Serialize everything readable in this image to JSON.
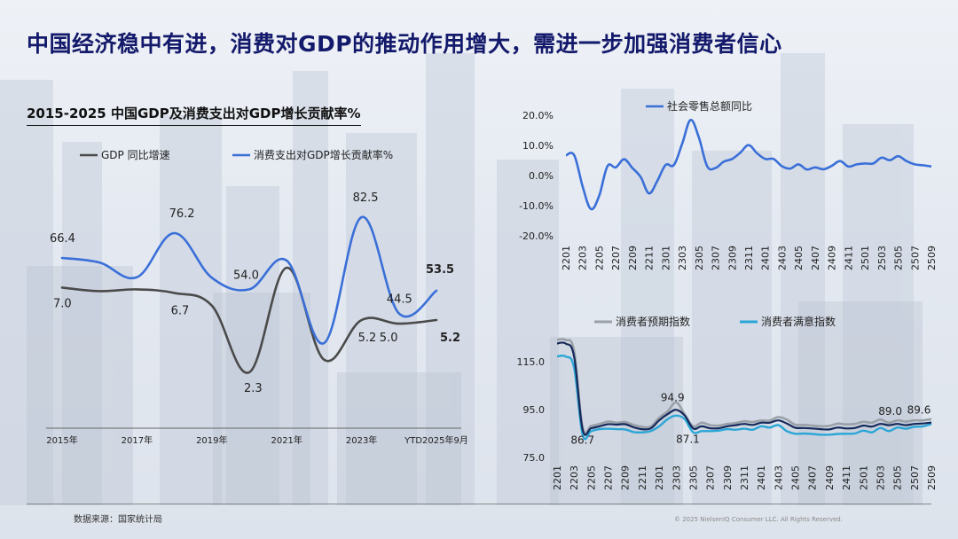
{
  "page": {
    "title": "中国经济稳中有进，消费对GDP的推动作用增大，需进一步加强消费者信心",
    "source": "数据来源：国家统计局",
    "copyright": "© 2025 NielsenIQ Consumer LLC. All Rights Reserved."
  },
  "colors": {
    "gdp": "#4a4a4a",
    "consumption": "#3a6fd8",
    "retail": "#3a6fd8",
    "expectation": "#9aa0a8",
    "satisfaction": "#2aa6d6",
    "confidence": "#14285a"
  },
  "chart_data": [
    {
      "type": "line",
      "title": "2015-2025 中国GDP及消费支出对GDP增长贡献率%",
      "legend_position": "top",
      "x": [
        "2015年",
        "2016",
        "2017年",
        "2018",
        "2019年",
        "2020",
        "2021年",
        "2022",
        "2023年",
        "2024",
        "YTD2025年9月"
      ],
      "xtick_labels": [
        "2015年",
        "2017年",
        "2019年",
        "2021年",
        "2023年",
        "YTD2025年9月"
      ],
      "series": [
        {
          "name": "GDP 同比增速",
          "values": [
            7.0,
            6.8,
            6.9,
            6.7,
            6.0,
            2.3,
            8.1,
            3.0,
            5.2,
            5.0,
            5.2
          ],
          "labels": {
            "0": "7.0",
            "3": "6.7",
            "5": "2.3",
            "8": "5.2",
            "9": "5.0",
            "10": "5.2"
          }
        },
        {
          "name": "消费支出对GDP增长贡献率%",
          "values": [
            66.4,
            64.6,
            58.8,
            76.2,
            58.6,
            54.0,
            65.4,
            32.8,
            82.5,
            44.5,
            53.5
          ],
          "labels": {
            "0": "66.4",
            "3": "76.2",
            "5": "54.0",
            "8": "82.5",
            "9": "44.5",
            "10": "53.5"
          }
        }
      ],
      "grid": false
    },
    {
      "type": "line",
      "legend_position": "top",
      "x": [
        "2201",
        "2202",
        "2203",
        "2204",
        "2205",
        "2206",
        "2207",
        "2208",
        "2209",
        "2210",
        "2211",
        "2212",
        "2301",
        "2302",
        "2303",
        "2304",
        "2305",
        "2306",
        "2307",
        "2308",
        "2309",
        "2310",
        "2311",
        "2312",
        "2401",
        "2402",
        "2403",
        "2404",
        "2405",
        "2406",
        "2407",
        "2408",
        "2409",
        "2410",
        "2411",
        "2412",
        "2501",
        "2502",
        "2503",
        "2504",
        "2505",
        "2506",
        "2507",
        "2508",
        "2509"
      ],
      "xtick_labels": [
        "2201",
        "2203",
        "2205",
        "2207",
        "2209",
        "2211",
        "2301",
        "2303",
        "2305",
        "2307",
        "2309",
        "2311",
        "2401",
        "2403",
        "2405",
        "2407",
        "2409",
        "2411",
        "2501",
        "2503",
        "2505",
        "2507",
        "2509"
      ],
      "series": [
        {
          "name": "社会零售总额同比",
          "values": [
            6.7,
            6.7,
            -3.5,
            -11.1,
            -6.7,
            3.1,
            2.7,
            5.4,
            2.5,
            -0.5,
            -5.9,
            -1.8,
            3.5,
            3.5,
            10.6,
            18.4,
            12.7,
            3.1,
            2.5,
            4.6,
            5.5,
            7.6,
            10.1,
            7.4,
            5.5,
            5.5,
            3.1,
            2.3,
            3.7,
            2.0,
            2.7,
            2.1,
            3.2,
            4.8,
            3.0,
            3.7,
            4.0,
            4.0,
            5.9,
            5.1,
            6.4,
            4.8,
            3.7,
            3.4,
            3.0
          ]
        }
      ],
      "ytick_labels": [
        "20.0%",
        "10.0%",
        "0.0%",
        "-10.0%",
        "-20.0%"
      ],
      "ylim": [
        -20,
        20
      ],
      "grid": false
    },
    {
      "type": "line",
      "legend_position": "top",
      "x": [
        "2201",
        "2202",
        "2203",
        "2204",
        "2205",
        "2206",
        "2207",
        "2208",
        "2209",
        "2210",
        "2211",
        "2212",
        "2301",
        "2302",
        "2303",
        "2304",
        "2305",
        "2306",
        "2307",
        "2308",
        "2309",
        "2310",
        "2311",
        "2312",
        "2401",
        "2402",
        "2403",
        "2404",
        "2405",
        "2406",
        "2407",
        "2408",
        "2409",
        "2410",
        "2411",
        "2412",
        "2501",
        "2502",
        "2503",
        "2504",
        "2505",
        "2506",
        "2507",
        "2508",
        "2509"
      ],
      "xtick_labels": [
        "2201",
        "2203",
        "2205",
        "2207",
        "2209",
        "2211",
        "2301",
        "2303",
        "2305",
        "2307",
        "2309",
        "2311",
        "2401",
        "2403",
        "2405",
        "2407",
        "2409",
        "2411",
        "2501",
        "2503",
        "2505",
        "2507",
        "2509"
      ],
      "series": [
        {
          "name": "消费者预期指数",
          "values": [
            124.1,
            124.1,
            119.5,
            87.6,
            88.2,
            89.0,
            90.0,
            89.5,
            89.8,
            88.6,
            87.8,
            87.9,
            91.6,
            94.3,
            98.0,
            93.0,
            88.0,
            89.5,
            88.5,
            88.3,
            89.0,
            89.4,
            90.1,
            89.8,
            90.4,
            90.4,
            91.8,
            90.8,
            88.7,
            88.6,
            88.3,
            88.0,
            88.2,
            89.1,
            88.8,
            89.0,
            89.9,
            89.5,
            90.8,
            89.5,
            90.5,
            90.0,
            90.5,
            90.5,
            91.0
          ]
        },
        {
          "name": "消费者满意指数",
          "values": [
            117.2,
            117.2,
            112.5,
            84.5,
            86.0,
            86.8,
            87.0,
            86.8,
            86.7,
            85.6,
            85.5,
            86.0,
            88.0,
            91.0,
            92.5,
            91.0,
            85.5,
            86.0,
            86.0,
            86.2,
            86.8,
            86.6,
            87.0,
            86.6,
            88.0,
            87.5,
            88.5,
            86.0,
            84.9,
            85.0,
            84.8,
            84.5,
            84.5,
            84.8,
            84.9,
            85.0,
            86.2,
            85.5,
            87.3,
            86.0,
            87.5,
            87.0,
            87.8,
            88.0,
            89.0
          ]
        },
        {
          "name": "",
          "values": [
            122.6,
            122.6,
            117.2,
            86.7,
            87.2,
            88.0,
            88.9,
            88.7,
            88.9,
            87.6,
            86.8,
            87.1,
            90.5,
            93.1,
            94.9,
            92.5,
            87.1,
            88.0,
            87.2,
            87.2,
            88.0,
            88.5,
            89.0,
            88.6,
            89.5,
            89.5,
            90.5,
            89.2,
            87.4,
            87.3,
            87.1,
            86.8,
            86.7,
            87.5,
            87.1,
            87.3,
            88.3,
            87.9,
            89.0,
            88.5,
            89.0,
            88.5,
            89.0,
            89.2,
            89.6
          ],
          "labels": {
            "3": "86.7",
            "14": "94.9",
            "16": "87.1",
            "40": "89.0",
            "44": "89.6"
          }
        }
      ],
      "ytick_labels": [
        "115.0",
        "95.0",
        "75.0"
      ],
      "ylim": [
        75,
        125
      ],
      "grid": false
    }
  ]
}
